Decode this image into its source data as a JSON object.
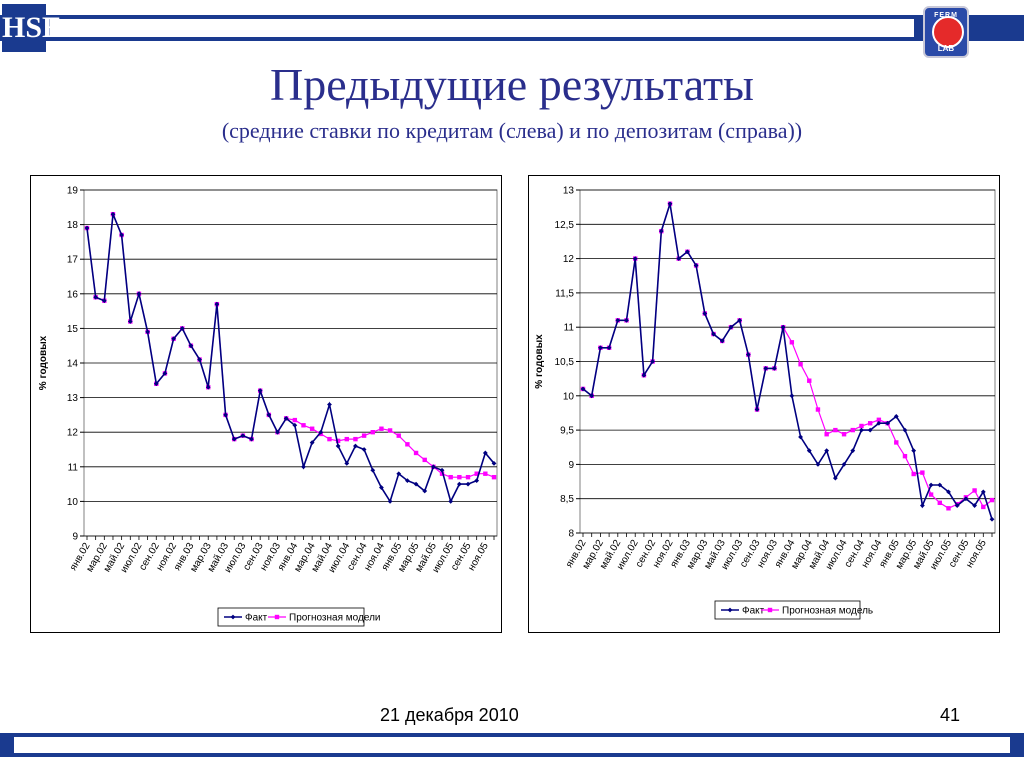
{
  "header": {
    "title": "Предыдущие результаты",
    "subtitle": "(средние ставки по кредитам (слева) и по депозитам (справа))"
  },
  "logos": {
    "left": "HSE",
    "right_top": "FERM",
    "right_bottom": "LAB"
  },
  "footer": {
    "date": "21 декабря 2010",
    "page": "41"
  },
  "colors": {
    "fact": "#000080",
    "forecast": "#ff00ff",
    "brand": "#1a3a8f",
    "title": "#2a2e8c"
  },
  "chart_data": [
    {
      "type": "line",
      "ylabel": "% годовых",
      "ylim": [
        9,
        19
      ],
      "yticks": [
        "9",
        "10",
        "11",
        "12",
        "13",
        "14",
        "15",
        "16",
        "17",
        "18",
        "19"
      ],
      "xtick_labels": [
        "янв.02",
        "мар.02",
        "май.02",
        "июл.02",
        "сен.02",
        "ноя.02",
        "янв.03",
        "мар.03",
        "май.03",
        "июл.03",
        "сен.03",
        "ноя.03",
        "янв.04",
        "мар.04",
        "май.04",
        "июл.04",
        "сен.04",
        "ноя.04",
        "янв.05",
        "мар.05",
        "май.05",
        "июл.05",
        "сен.05",
        "ноя.05"
      ],
      "legend": {
        "placement": "bottom"
      },
      "series": [
        {
          "name": "Факт",
          "values": [
            17.9,
            15.9,
            15.8,
            18.3,
            17.7,
            15.2,
            16.0,
            14.9,
            13.4,
            13.7,
            14.7,
            15.0,
            14.5,
            14.1,
            13.3,
            15.7,
            12.5,
            11.8,
            11.9,
            11.8,
            13.2,
            12.5,
            12.0,
            12.4,
            12.2,
            11.0,
            11.7,
            12.0,
            12.8,
            11.6,
            11.1,
            11.6,
            11.5,
            10.9,
            10.4,
            10.0,
            10.8,
            10.6,
            10.5,
            10.3,
            11.0,
            10.9,
            10.0,
            10.5,
            10.5,
            10.6,
            11.4,
            11.1
          ]
        },
        {
          "name": "Прогнозная модели",
          "values": [
            17.9,
            15.9,
            15.8,
            18.3,
            17.7,
            15.2,
            16.0,
            14.9,
            13.4,
            13.7,
            14.7,
            15.0,
            14.5,
            14.1,
            13.3,
            15.7,
            12.5,
            11.8,
            11.9,
            11.8,
            13.2,
            12.5,
            12.0,
            12.4,
            12.35,
            12.2,
            12.1,
            11.95,
            11.8,
            11.75,
            11.8,
            11.8,
            11.9,
            12.0,
            12.1,
            12.05,
            11.9,
            11.65,
            11.4,
            11.2,
            11.0,
            10.8,
            10.7,
            10.7,
            10.7,
            10.8,
            10.8,
            10.7
          ]
        }
      ]
    },
    {
      "type": "line",
      "ylabel": "% годовых",
      "ylim": [
        8,
        13
      ],
      "yticks": [
        "8",
        "8,5",
        "9",
        "9,5",
        "10",
        "10,5",
        "11",
        "11,5",
        "12",
        "12,5",
        "13"
      ],
      "xtick_labels": [
        "янв.02",
        "мар.02",
        "май.02",
        "июл.02",
        "сен.02",
        "ноя.02",
        "янв.03",
        "мар.03",
        "май.03",
        "июл.03",
        "сен.03",
        "ноя.03",
        "янв.04",
        "мар.04",
        "май.04",
        "июл.04",
        "сен.04",
        "ноя.04",
        "янв.05",
        "мар.05",
        "май.05",
        "июл.05",
        "сен.05",
        "ноя.05"
      ],
      "legend": {
        "placement": "bottom"
      },
      "series": [
        {
          "name": "Факт",
          "values": [
            10.1,
            10.0,
            10.7,
            10.7,
            11.1,
            11.1,
            12.0,
            10.3,
            10.5,
            12.4,
            12.8,
            12.0,
            12.1,
            11.9,
            11.2,
            10.9,
            10.8,
            11.0,
            11.1,
            10.6,
            9.8,
            10.4,
            10.4,
            11.0,
            10.0,
            9.4,
            9.2,
            9.0,
            9.2,
            8.8,
            9.0,
            9.2,
            9.5,
            9.5,
            9.6,
            9.6,
            9.7,
            9.5,
            9.2,
            8.4,
            8.7,
            8.7,
            8.6,
            8.4,
            8.5,
            8.4,
            8.6,
            8.2
          ]
        },
        {
          "name": "Прогнозная модель",
          "values": [
            10.1,
            10.0,
            10.7,
            10.7,
            11.1,
            11.1,
            12.0,
            10.3,
            10.5,
            12.4,
            12.8,
            12.0,
            12.1,
            11.9,
            11.2,
            10.9,
            10.8,
            11.0,
            11.1,
            10.6,
            9.8,
            10.4,
            10.4,
            11.0,
            10.78,
            10.46,
            10.22,
            9.8,
            9.44,
            9.5,
            9.44,
            9.5,
            9.56,
            9.6,
            9.65,
            9.6,
            9.32,
            9.12,
            8.86,
            8.88,
            8.56,
            8.44,
            8.36,
            8.42,
            8.52,
            8.62,
            8.38,
            8.48
          ]
        }
      ]
    }
  ]
}
